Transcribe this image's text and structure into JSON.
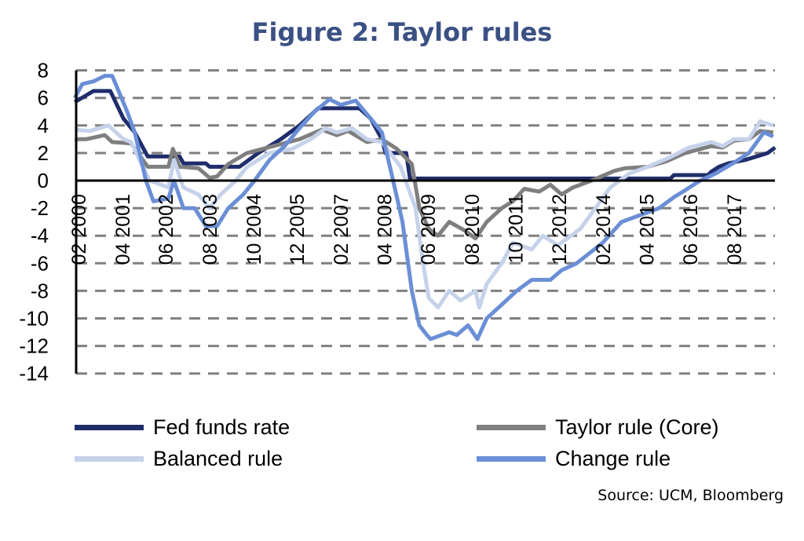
{
  "chart_data": {
    "type": "line",
    "title": "Figure 2: Taylor rules",
    "xlabel": "",
    "ylabel": "",
    "ylim": [
      -14,
      8
    ],
    "xlim": [
      2000.1,
      2018.7
    ],
    "yticks": [
      8,
      6,
      4,
      2,
      0,
      -2,
      -4,
      -6,
      -8,
      -10,
      -12,
      -14
    ],
    "ytick_labels": [
      "8",
      "6",
      "4",
      "2",
      "0",
      "-2",
      "-4",
      "-6",
      "-8",
      "-10",
      "-12",
      "-14"
    ],
    "xticks": [
      2000.1,
      2001.27,
      2002.43,
      2003.6,
      2004.77,
      2005.93,
      2007.1,
      2008.27,
      2009.43,
      2010.6,
      2011.77,
      2012.93,
      2014.1,
      2015.27,
      2016.43,
      2017.6
    ],
    "xtick_labels": [
      "02 2000",
      "04 2001",
      "06 2002",
      "08 2003",
      "10 2004",
      "12 2005",
      "02 2007",
      "04 2008",
      "06 2009",
      "08 2010",
      "10 2011",
      "12 2012",
      "02 2014",
      "04 2015",
      "06 2016",
      "08 2017"
    ],
    "grid": "horizontal dashed",
    "legend_placement": "bottom",
    "series": [
      {
        "name": "Fed funds rate",
        "color": "#1f2d6b",
        "x": [
          2000.0,
          2000.5,
          2000.95,
          2001.3,
          2001.6,
          2001.95,
          2002.8,
          2002.9,
          2003.5,
          2003.6,
          2004.4,
          2004.9,
          2005.5,
          2006.0,
          2006.5,
          2007.6,
          2007.9,
          2008.2,
          2008.3,
          2008.85,
          2008.95,
          2015.9,
          2016.0,
          2016.9,
          2017.0,
          2017.2,
          2017.45,
          2017.9,
          2018.2,
          2018.5,
          2018.7
        ],
        "y": [
          5.7,
          6.5,
          6.5,
          4.5,
          3.5,
          1.75,
          1.75,
          1.25,
          1.25,
          1.0,
          1.0,
          2.0,
          3.0,
          4.0,
          5.25,
          5.25,
          4.5,
          3.0,
          2.0,
          2.0,
          0.15,
          0.15,
          0.4,
          0.4,
          0.65,
          1.0,
          1.25,
          1.5,
          1.75,
          2.0,
          2.4
        ]
      },
      {
        "name": "Taylor rule (Core)",
        "color": "#7f7f7f",
        "x": [
          2000.0,
          2000.3,
          2000.8,
          2001.0,
          2001.5,
          2001.95,
          2002.5,
          2002.62,
          2002.8,
          2003.3,
          2003.6,
          2003.8,
          2004.1,
          2004.6,
          2005.3,
          2006.0,
          2006.6,
          2007.0,
          2007.3,
          2007.8,
          2008.2,
          2008.6,
          2009.0,
          2009.2,
          2009.45,
          2009.7,
          2010.0,
          2010.4,
          2010.7,
          2011.0,
          2011.4,
          2011.7,
          2012.0,
          2012.4,
          2012.7,
          2013.0,
          2013.3,
          2013.8,
          2014.4,
          2014.7,
          2015.3,
          2015.8,
          2016.3,
          2017.0,
          2017.3,
          2017.6,
          2018.0,
          2018.3,
          2018.65
        ],
        "y": [
          3.0,
          3.0,
          3.3,
          2.8,
          2.7,
          1.0,
          1.0,
          2.3,
          1.0,
          0.9,
          0.2,
          0.3,
          1.2,
          2.0,
          2.5,
          3.0,
          3.7,
          3.3,
          3.6,
          2.8,
          3.0,
          2.3,
          1.2,
          -2.0,
          -3.5,
          -4.0,
          -3.0,
          -3.6,
          -4.2,
          -3.0,
          -2.0,
          -1.5,
          -0.6,
          -0.8,
          -0.3,
          -1.0,
          -0.5,
          0.0,
          0.7,
          0.9,
          1.0,
          1.4,
          2.0,
          2.5,
          2.4,
          2.9,
          3.0,
          3.6,
          3.5
        ]
      },
      {
        "name": "Balanced rule",
        "color": "#c5d2ea",
        "x": [
          2000.0,
          2000.4,
          2000.9,
          2001.3,
          2001.5,
          2002.0,
          2002.5,
          2002.65,
          2002.9,
          2003.3,
          2003.6,
          2003.9,
          2004.3,
          2004.6,
          2005.2,
          2005.8,
          2006.3,
          2006.7,
          2007.0,
          2007.4,
          2007.8,
          2008.2,
          2008.7,
          2009.1,
          2009.3,
          2009.45,
          2009.7,
          2010.0,
          2010.3,
          2010.7,
          2010.8,
          2011.0,
          2011.4,
          2011.7,
          2012.2,
          2012.5,
          2012.9,
          2013.5,
          2013.9,
          2014.3,
          2014.8,
          2015.3,
          2015.9,
          2016.4,
          2017.0,
          2017.3,
          2017.6,
          2018.0,
          2018.3,
          2018.65
        ],
        "y": [
          3.7,
          3.6,
          4.0,
          3.0,
          2.8,
          0.0,
          -0.5,
          1.5,
          -0.5,
          -1.0,
          -2.0,
          -1.0,
          0.0,
          1.0,
          2.0,
          2.3,
          3.0,
          3.8,
          3.5,
          3.8,
          3.0,
          2.8,
          1.0,
          -2.0,
          -6.0,
          -8.5,
          -9.2,
          -8.0,
          -8.7,
          -8.0,
          -9.2,
          -7.5,
          -6.0,
          -4.5,
          -5.0,
          -4.0,
          -4.7,
          -3.5,
          -2.0,
          -0.5,
          0.5,
          1.0,
          1.7,
          2.4,
          2.8,
          2.5,
          3.0,
          3.0,
          4.3,
          4.0
        ]
      },
      {
        "name": "Change rule",
        "color": "#6b8fd6",
        "x": [
          2000.0,
          2000.2,
          2000.5,
          2000.8,
          2001.0,
          2001.4,
          2001.6,
          2001.9,
          2002.1,
          2002.5,
          2002.65,
          2002.9,
          2003.2,
          2003.5,
          2003.8,
          2004.1,
          2004.5,
          2004.8,
          2005.2,
          2005.6,
          2006.0,
          2006.4,
          2006.8,
          2007.1,
          2007.5,
          2007.9,
          2008.2,
          2008.5,
          2008.75,
          2009.0,
          2009.2,
          2009.4,
          2009.5,
          2010.0,
          2010.2,
          2010.5,
          2010.75,
          2011.0,
          2011.4,
          2011.8,
          2012.2,
          2012.7,
          2013.0,
          2013.4,
          2014.1,
          2014.6,
          2015.1,
          2015.6,
          2016.0,
          2016.3,
          2016.7,
          2017.1,
          2017.6,
          2018.0,
          2018.4,
          2018.65
        ],
        "y": [
          6.0,
          7.0,
          7.2,
          7.6,
          7.6,
          5.0,
          3.5,
          0.0,
          -1.5,
          -1.3,
          0.0,
          -2.0,
          -2.0,
          -3.3,
          -3.3,
          -2.0,
          -1.0,
          0.0,
          1.5,
          2.5,
          3.8,
          5.0,
          5.9,
          5.5,
          5.8,
          4.5,
          3.5,
          0.0,
          -3.0,
          -8.0,
          -10.5,
          -11.2,
          -11.5,
          -11.0,
          -11.2,
          -10.5,
          -11.5,
          -10.0,
          -9.0,
          -8.0,
          -7.2,
          -7.2,
          -6.5,
          -6.0,
          -4.5,
          -3.0,
          -2.5,
          -2.0,
          -1.2,
          -0.7,
          0.0,
          0.5,
          1.3,
          2.0,
          3.5,
          3.2
        ]
      }
    ],
    "source": "Source: UCM, Bloomberg"
  }
}
